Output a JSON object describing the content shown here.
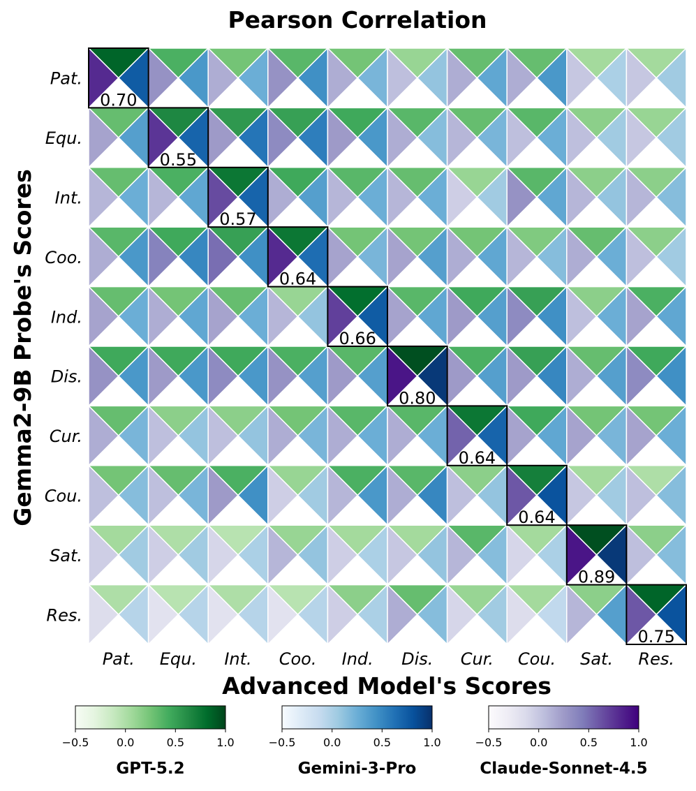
{
  "chart_data": {
    "type": "heatmap",
    "title": "Pearson Correlation",
    "xlabel": "Advanced Model's Scores",
    "ylabel": "Gemma2-9B Probe's Scores",
    "categories": [
      "Pat.",
      "Equ.",
      "Int.",
      "Coo.",
      "Ind.",
      "Dis.",
      "Cur.",
      "Cou.",
      "Sat.",
      "Res."
    ],
    "value_range": [
      -0.5,
      1.0
    ],
    "colorbar_ticks": [
      "−0.5",
      "0.0",
      "0.5",
      "1.0"
    ],
    "diagonal_labels": [
      "0.70",
      "0.55",
      "0.57",
      "0.64",
      "0.66",
      "0.80",
      "0.64",
      "0.64",
      "0.89",
      "0.75"
    ],
    "series": [
      {
        "name": "GPT-5.2",
        "colormap": "Greens",
        "position": "top",
        "values": [
          [
            0.85,
            0.4,
            0.25,
            0.35,
            0.25,
            0.1,
            0.3,
            0.3,
            0.05,
            0.05
          ],
          [
            0.3,
            0.65,
            0.55,
            0.5,
            0.45,
            0.35,
            0.3,
            0.35,
            0.15,
            0.1
          ],
          [
            0.3,
            0.4,
            0.75,
            0.45,
            0.35,
            0.3,
            0.1,
            0.35,
            0.15,
            0.15
          ],
          [
            0.35,
            0.45,
            0.5,
            0.75,
            0.25,
            0.25,
            0.25,
            0.2,
            0.3,
            0.15
          ],
          [
            0.3,
            0.25,
            0.3,
            0.1,
            0.8,
            0.35,
            0.45,
            0.5,
            0.15,
            0.4
          ],
          [
            0.45,
            0.45,
            0.45,
            0.4,
            0.35,
            0.95,
            0.4,
            0.5,
            0.3,
            0.45
          ],
          [
            0.3,
            0.15,
            0.15,
            0.25,
            0.35,
            0.35,
            0.75,
            0.45,
            0.25,
            0.25
          ],
          [
            0.25,
            0.3,
            0.4,
            0.1,
            0.4,
            0.35,
            0.15,
            0.7,
            0.05,
            0.0
          ],
          [
            0.05,
            0.0,
            -0.05,
            0.1,
            0.05,
            0.05,
            0.35,
            0.05,
            0.95,
            0.15
          ],
          [
            0.0,
            -0.05,
            0.0,
            -0.05,
            0.15,
            0.3,
            0.1,
            0.05,
            0.15,
            0.85
          ]
        ]
      },
      {
        "name": "Gemini-3-Pro",
        "colormap": "Blues",
        "position": "right",
        "values": [
          [
            0.75,
            0.4,
            0.25,
            0.45,
            0.2,
            0.1,
            0.3,
            0.4,
            0.0,
            0.05
          ],
          [
            0.35,
            0.7,
            0.6,
            0.55,
            0.4,
            0.15,
            0.2,
            0.25,
            0.05,
            0.05
          ],
          [
            0.25,
            0.3,
            0.7,
            0.35,
            0.25,
            0.25,
            0.05,
            0.3,
            0.1,
            0.15
          ],
          [
            0.4,
            0.5,
            0.45,
            0.65,
            0.2,
            0.35,
            0.3,
            0.15,
            0.25,
            0.05
          ],
          [
            0.25,
            0.3,
            0.25,
            0.1,
            0.75,
            0.3,
            0.35,
            0.45,
            0.25,
            0.3
          ],
          [
            0.4,
            0.4,
            0.4,
            0.35,
            0.35,
            0.95,
            0.35,
            0.5,
            0.35,
            0.45
          ],
          [
            0.2,
            0.1,
            0.1,
            0.2,
            0.25,
            0.25,
            0.7,
            0.3,
            0.2,
            0.25
          ],
          [
            0.15,
            0.2,
            0.45,
            0.05,
            0.4,
            0.5,
            0.1,
            0.8,
            0.05,
            0.15
          ],
          [
            0.05,
            0.05,
            0.0,
            0.1,
            0.0,
            0.1,
            0.15,
            0.0,
            0.95,
            0.15
          ],
          [
            -0.05,
            -0.05,
            -0.05,
            -0.05,
            0.0,
            0.15,
            0.05,
            -0.1,
            0.35,
            0.8
          ]
        ]
      },
      {
        "name": "Claude-Sonnet-4.5",
        "colormap": "Purples",
        "position": "left",
        "values": [
          [
            0.8,
            0.3,
            0.15,
            0.3,
            0.15,
            0.05,
            0.15,
            0.15,
            0.0,
            0.0
          ],
          [
            0.2,
            0.75,
            0.25,
            0.35,
            0.25,
            0.15,
            0.1,
            0.05,
            0.05,
            0.0
          ],
          [
            0.1,
            0.1,
            0.65,
            0.15,
            0.1,
            0.1,
            -0.05,
            0.3,
            0.1,
            0.1
          ],
          [
            0.15,
            0.4,
            0.5,
            0.8,
            0.2,
            0.2,
            0.15,
            0.1,
            0.15,
            0.05
          ],
          [
            0.2,
            0.15,
            0.2,
            0.1,
            0.7,
            0.2,
            0.25,
            0.35,
            0.05,
            0.2
          ],
          [
            0.3,
            0.25,
            0.35,
            0.3,
            0.25,
            0.9,
            0.25,
            0.25,
            0.15,
            0.35
          ],
          [
            0.15,
            0.05,
            0.05,
            0.15,
            0.15,
            0.15,
            0.55,
            0.2,
            0.2,
            0.2
          ],
          [
            0.05,
            0.05,
            0.25,
            -0.05,
            0.1,
            0.15,
            0.05,
            0.6,
            0.0,
            0.05
          ],
          [
            -0.05,
            -0.05,
            -0.1,
            0.1,
            -0.05,
            0.0,
            0.1,
            -0.1,
            0.9,
            0.05
          ],
          [
            -0.15,
            -0.2,
            -0.2,
            -0.2,
            -0.05,
            0.15,
            -0.1,
            -0.15,
            0.1,
            0.6
          ]
        ]
      }
    ],
    "colors": {
      "greens": [
        "#f7fcf5",
        "#e5f5e0",
        "#c7e9c0",
        "#a1d99b",
        "#74c476",
        "#41ab5d",
        "#238b45",
        "#006d2c",
        "#00441b"
      ],
      "blues": [
        "#f7fbff",
        "#deebf7",
        "#c6dbef",
        "#9ecae1",
        "#6baed6",
        "#4292c6",
        "#2171b5",
        "#08519c",
        "#08306b"
      ],
      "purples": [
        "#fcfbfd",
        "#efedf5",
        "#dadaeb",
        "#bcbddc",
        "#9e9ac8",
        "#807dba",
        "#6a51a3",
        "#54278f",
        "#3f007d"
      ]
    }
  }
}
